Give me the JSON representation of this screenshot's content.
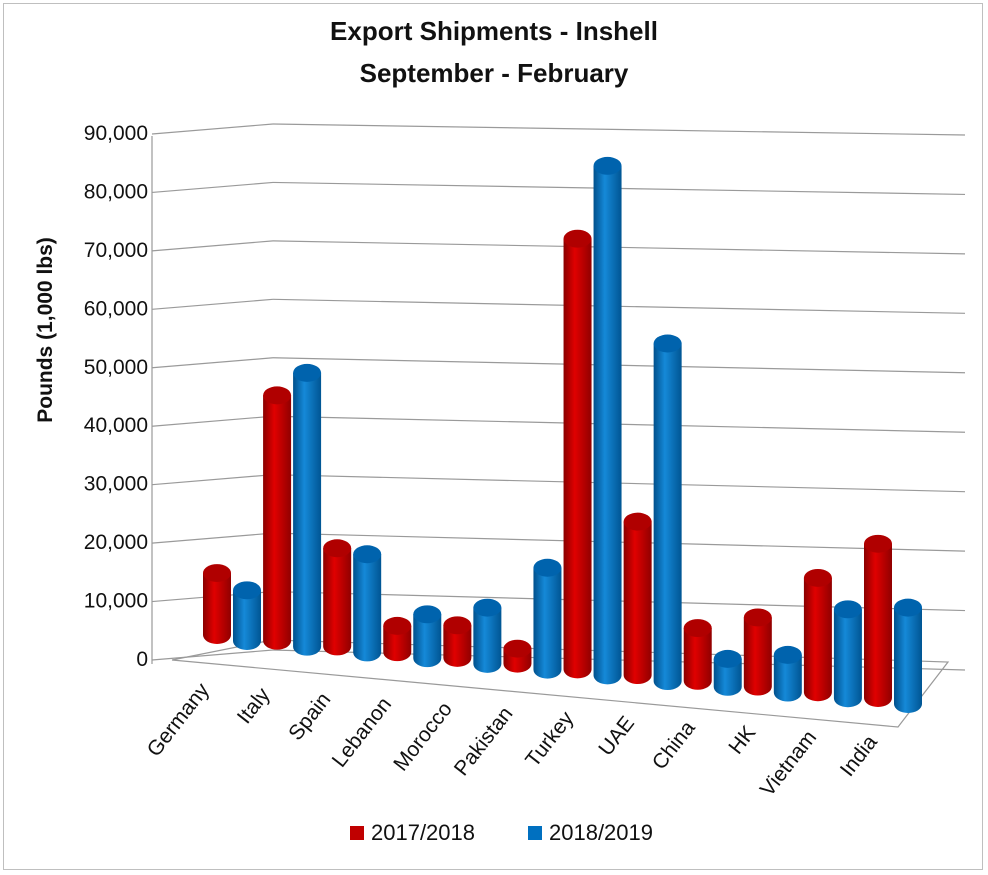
{
  "chart_data": {
    "type": "bar",
    "title": "Export Shipments - Inshell",
    "subtitle": "September - February",
    "ylabel": "Pounds (1,000 lbs)",
    "xlabel": "",
    "categories": [
      "Germany",
      "Italy",
      "Spain",
      "Lebanon",
      "Morocco",
      "Pakistan",
      "Turkey",
      "UAE",
      "China",
      "HK",
      "Vietnam",
      "India"
    ],
    "series": [
      {
        "name": "2017/2018",
        "color": "#c00000",
        "values": [
          11000,
          43000,
          17000,
          4500,
          5500,
          2500,
          71000,
          25000,
          8500,
          11000,
          18000,
          24000
        ]
      },
      {
        "name": "2018/2019",
        "color": "#0070c0",
        "values": [
          9000,
          48000,
          17000,
          7500,
          9500,
          17000,
          84000,
          55000,
          4500,
          6000,
          14000,
          15000
        ]
      }
    ],
    "yticks": [
      "0",
      "10,000",
      "20,000",
      "30,000",
      "40,000",
      "50,000",
      "60,000",
      "70,000",
      "80,000",
      "90,000"
    ],
    "ylim": [
      0,
      90000
    ],
    "grid": true,
    "legend_position": "bottom"
  }
}
